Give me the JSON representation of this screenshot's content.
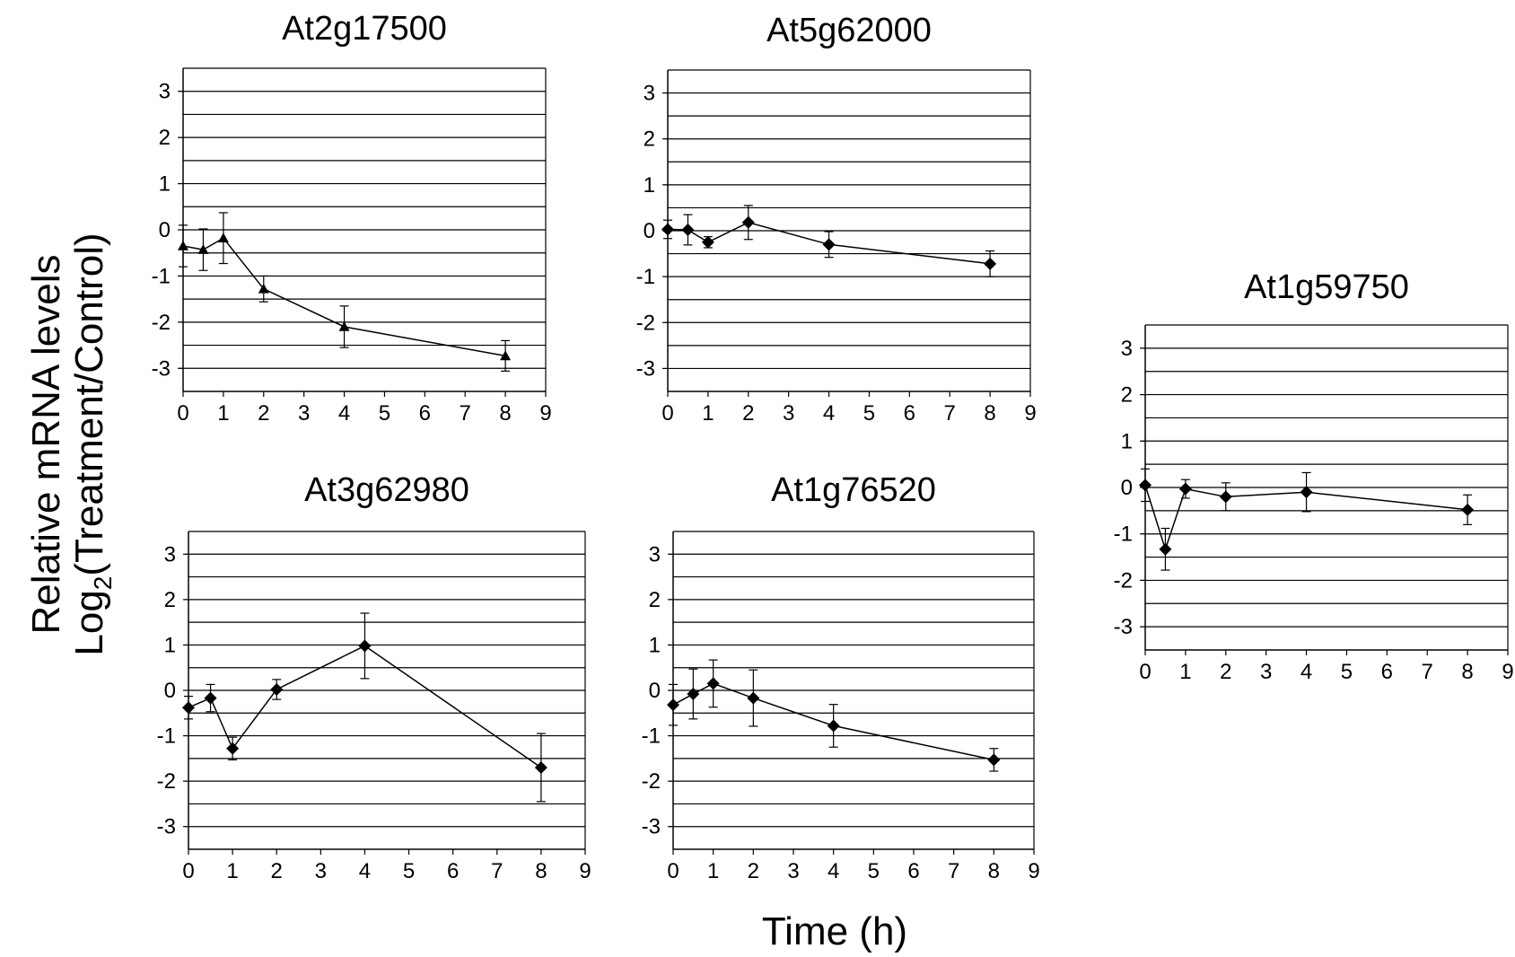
{
  "figure": {
    "y_label_line1": "Relative mRNA levels",
    "y_label_line2_prefix": "Log",
    "y_label_line2_sub": "2",
    "y_label_line2_suffix": "(Treatment/Control)",
    "x_label": "Time (h)"
  },
  "chart_data": [
    {
      "type": "line",
      "title": "At2g17500",
      "marker": "triangle",
      "xlim": [
        0,
        9
      ],
      "ylim": [
        -3.5,
        3.5
      ],
      "x_ticks": [
        "0",
        "1",
        "2",
        "3",
        "4",
        "5",
        "6",
        "7",
        "8",
        "9"
      ],
      "y_ticks": [
        "3",
        "2",
        "1",
        "0",
        "-1",
        "-2",
        "-3"
      ],
      "grid": true,
      "x": [
        0,
        0.5,
        1,
        2,
        4,
        8
      ],
      "y": [
        -0.35,
        -0.43,
        -0.18,
        -1.28,
        -2.1,
        -2.73
      ],
      "error": [
        0.45,
        0.45,
        0.55,
        0.28,
        0.45,
        0.33
      ]
    },
    {
      "type": "line",
      "title": "At5g62000",
      "marker": "diamond",
      "xlim": [
        0,
        9
      ],
      "ylim": [
        -3.5,
        3.5
      ],
      "x_ticks": [
        "0",
        "1",
        "2",
        "3",
        "4",
        "5",
        "6",
        "7",
        "8",
        "9"
      ],
      "y_ticks": [
        "3",
        "2",
        "1",
        "0",
        "-1",
        "-2",
        "-3"
      ],
      "grid": true,
      "x": [
        0,
        0.5,
        1,
        2,
        4,
        8
      ],
      "y": [
        0.03,
        0.02,
        -0.25,
        0.18,
        -0.3,
        -0.72
      ],
      "error": [
        0.2,
        0.33,
        0.12,
        0.37,
        0.28,
        0.28
      ]
    },
    {
      "type": "line",
      "title": "At3g62980",
      "marker": "diamond",
      "xlim": [
        0,
        9
      ],
      "ylim": [
        -3.5,
        3.5
      ],
      "x_ticks": [
        "0",
        "1",
        "2",
        "3",
        "4",
        "5",
        "6",
        "7",
        "8",
        "9"
      ],
      "y_ticks": [
        "3",
        "2",
        "1",
        "0",
        "-1",
        "-2",
        "-3"
      ],
      "grid": true,
      "x": [
        0,
        0.5,
        1,
        2,
        4,
        8
      ],
      "y": [
        -0.38,
        -0.17,
        -1.28,
        0.02,
        0.98,
        -1.7
      ],
      "error": [
        0.25,
        0.3,
        0.25,
        0.22,
        0.72,
        0.75
      ]
    },
    {
      "type": "line",
      "title": "At1g76520",
      "marker": "diamond",
      "xlim": [
        0,
        9
      ],
      "ylim": [
        -3.5,
        3.5
      ],
      "x_ticks": [
        "0",
        "1",
        "2",
        "3",
        "4",
        "5",
        "6",
        "7",
        "8",
        "9"
      ],
      "y_ticks": [
        "3",
        "2",
        "1",
        "0",
        "-1",
        "-2",
        "-3"
      ],
      "grid": true,
      "x": [
        0,
        0.5,
        1,
        2,
        4,
        8
      ],
      "y": [
        -0.32,
        -0.08,
        0.15,
        -0.17,
        -0.78,
        -1.53
      ],
      "error": [
        0.45,
        0.55,
        0.52,
        0.62,
        0.47,
        0.25
      ]
    },
    {
      "type": "line",
      "title": "At1g59750",
      "marker": "diamond",
      "xlim": [
        0,
        9
      ],
      "ylim": [
        -3.5,
        3.5
      ],
      "x_ticks": [
        "0",
        "1",
        "2",
        "3",
        "4",
        "5",
        "6",
        "7",
        "8",
        "9"
      ],
      "y_ticks": [
        "3",
        "2",
        "1",
        "0",
        "-1",
        "-2",
        "-3"
      ],
      "grid": true,
      "x": [
        0,
        0.5,
        1,
        2,
        4,
        8
      ],
      "y": [
        0.05,
        -1.33,
        -0.03,
        -0.2,
        -0.1,
        -0.48
      ],
      "error": [
        0.35,
        0.45,
        0.2,
        0.3,
        0.42,
        0.32
      ]
    }
  ]
}
